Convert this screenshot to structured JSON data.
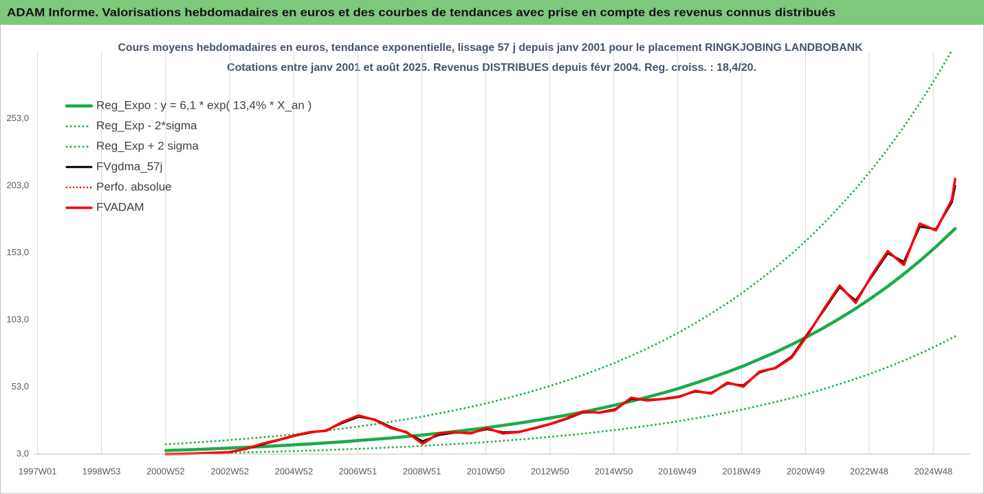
{
  "header": {
    "title": "ADAM Informe. Valorisations hebdomadaires en euros et des courbes de tendances avec prise en compte des revenus connus distribués"
  },
  "chart_data": {
    "type": "line",
    "title": "Cours moyens hebdomadaires en euros, tendance exponentielle, lissage 57 j depuis janv 2001 pour le placement RINGKJOBING LANDBOBANK",
    "subtitle": "Cotations entre janv 2001 et août 2025.  Revenus DISTRIBUES depuis févr 2004.  Reg. croiss. : 18,4/20.",
    "x": [
      2001,
      2001.5,
      2002,
      2002.5,
      2003,
      2003.5,
      2004,
      2004.5,
      2005,
      2005.5,
      2006,
      2006.5,
      2007,
      2007.5,
      2008,
      2008.5,
      2009,
      2009.5,
      2010,
      2010.5,
      2011,
      2011.5,
      2012,
      2012.5,
      2013,
      2013.5,
      2014,
      2014.5,
      2015,
      2015.5,
      2016,
      2016.5,
      2017,
      2017.5,
      2018,
      2018.5,
      2019,
      2019.5,
      2020,
      2020.5,
      2021,
      2021.5,
      2022,
      2022.5,
      2023,
      2023.5,
      2024,
      2024.5,
      2025,
      2025.5,
      2025.6
    ],
    "series": [
      {
        "name": "Reg_Expo : y = 6,1 * exp( 13,4% *  X_an )",
        "color": "#1aab4b",
        "style": "solid",
        "width": 4.5,
        "values": [
          5.7,
          6.1,
          6.5,
          7.0,
          7.5,
          8.1,
          8.6,
          9.2,
          9.9,
          10.6,
          11.4,
          12.2,
          13.1,
          14.0,
          15.0,
          16.1,
          17.2,
          18.5,
          19.8,
          21.2,
          22.7,
          24.4,
          26.1,
          28.0,
          30.0,
          32.1,
          34.4,
          36.9,
          39.5,
          42.4,
          45.4,
          48.6,
          52.1,
          55.9,
          59.9,
          64.2,
          68.7,
          73.7,
          78.9,
          84.6,
          90.6,
          97.1,
          104.1,
          111.5,
          119.5,
          128.0,
          137.2,
          147.0,
          157.5,
          168.8,
          171.1
        ]
      },
      {
        "name": "Reg_Exp - 2*sigma",
        "color": "#25b24b",
        "style": "dotted",
        "width": 3,
        "values": [
          3.0,
          3.2,
          3.5,
          3.7,
          4.0,
          4.3,
          4.6,
          4.9,
          5.2,
          5.6,
          6.0,
          6.5,
          6.9,
          7.4,
          8.0,
          8.5,
          9.1,
          9.8,
          10.5,
          11.2,
          12.0,
          12.9,
          13.8,
          14.8,
          15.9,
          17.0,
          18.2,
          19.6,
          20.9,
          22.5,
          24.1,
          25.8,
          27.6,
          29.6,
          31.7,
          34.0,
          36.4,
          39.1,
          41.8,
          44.8,
          48.0,
          51.5,
          55.2,
          59.1,
          63.3,
          67.8,
          72.7,
          77.9,
          83.5,
          89.5,
          90.7
        ]
      },
      {
        "name": "Reg_Exp + 2 sigma",
        "color": "#25b24b",
        "style": "dotted",
        "width": 3,
        "values": [
          10.3,
          11.0,
          11.8,
          12.6,
          13.5,
          14.5,
          15.5,
          16.6,
          17.8,
          19.1,
          20.5,
          22.0,
          23.6,
          25.2,
          27.0,
          29.0,
          31.0,
          33.3,
          35.6,
          38.2,
          40.9,
          43.9,
          47.0,
          50.4,
          54.0,
          57.8,
          61.9,
          66.4,
          71.1,
          76.3,
          81.7,
          87.5,
          93.8,
          100.6,
          107.8,
          115.6,
          123.7,
          132.7,
          142.0,
          152.3,
          163.1,
          174.8,
          187.4,
          200.7,
          215.1,
          230.4,
          247.0,
          264.6,
          283.5,
          303.8,
          308.0
        ]
      },
      {
        "name": "FVgdma_57j",
        "color": "#000000",
        "style": "solid",
        "width": 3,
        "values": [
          3.0,
          3.2,
          3.5,
          3.9,
          4.6,
          6.8,
          10.2,
          13.3,
          16.5,
          19.0,
          20.8,
          26.2,
          30.8,
          28.9,
          23.2,
          19.0,
          12.5,
          17.2,
          19.0,
          18.8,
          21.6,
          19.2,
          19.6,
          22.2,
          25.4,
          29.3,
          34.2,
          34.0,
          36.4,
          44.2,
          43.4,
          44.2,
          46.0,
          49.6,
          48.6,
          55.6,
          54.2,
          63.8,
          67.4,
          75.6,
          92.6,
          109.8,
          127.4,
          117.4,
          135.2,
          152.8,
          146.2,
          172.6,
          170.6,
          190.8,
          203.0
        ]
      },
      {
        "name": "Perfo. absolue",
        "color": "#e00000",
        "style": "dotted",
        "width": 2.5,
        "values": [
          3.0,
          3.2,
          3.5,
          4.0,
          4.5,
          7.0,
          10.7,
          13.5,
          16.8,
          19.4,
          20.4,
          27.0,
          31.7,
          28.6,
          22.5,
          19.4,
          10.7,
          18.4,
          19.4,
          18.4,
          22.5,
          18.4,
          19.4,
          22.5,
          25.6,
          29.7,
          34.8,
          33.8,
          35.8,
          45.0,
          43.0,
          44.0,
          45.6,
          50.2,
          48.1,
          56.3,
          53.3,
          64.5,
          67.1,
          74.8,
          91.7,
          110.7,
          128.6,
          115.8,
          136.3,
          154.3,
          144.0,
          174.8,
          169.7,
          192.7,
          208.0
        ]
      },
      {
        "name": "FVADAM",
        "color": "#ff0000",
        "style": "solid",
        "width": 3.5,
        "values": [
          3.0,
          3.2,
          3.5,
          4.0,
          4.5,
          7.0,
          10.7,
          13.5,
          16.8,
          19.4,
          20.4,
          27.0,
          31.7,
          28.6,
          22.5,
          19.4,
          10.7,
          18.4,
          19.4,
          18.4,
          22.5,
          18.4,
          19.4,
          22.5,
          25.6,
          29.7,
          34.8,
          33.8,
          35.8,
          45.0,
          43.0,
          44.0,
          45.6,
          50.2,
          48.1,
          56.3,
          53.3,
          64.5,
          67.1,
          74.8,
          91.7,
          110.7,
          128.6,
          115.8,
          136.3,
          154.3,
          144.0,
          174.8,
          169.7,
          192.7,
          208.0
        ]
      }
    ],
    "xlim": [
      1996.9,
      2026.05
    ],
    "ylim": [
      3,
      303
    ],
    "xticks": [
      {
        "value": 1997.0,
        "label": "1997W01"
      },
      {
        "value": 1998.99,
        "label": "1998W53"
      },
      {
        "value": 2000.99,
        "label": "2000W52"
      },
      {
        "value": 2002.99,
        "label": "2002W52"
      },
      {
        "value": 2004.99,
        "label": "2004W52"
      },
      {
        "value": 2006.98,
        "label": "2006W51"
      },
      {
        "value": 2008.98,
        "label": "2008W51"
      },
      {
        "value": 2010.97,
        "label": "2010W50"
      },
      {
        "value": 2012.97,
        "label": "2012W50"
      },
      {
        "value": 2014.96,
        "label": "2014W50"
      },
      {
        "value": 2016.94,
        "label": "2016W49"
      },
      {
        "value": 2018.94,
        "label": "2018W49"
      },
      {
        "value": 2020.94,
        "label": "2020W49"
      },
      {
        "value": 2022.92,
        "label": "2022W48"
      },
      {
        "value": 2024.92,
        "label": "2024W48"
      }
    ],
    "yticks": [
      {
        "value": 3,
        "label": "3,0"
      },
      {
        "value": 53,
        "label": "53,0"
      },
      {
        "value": 103,
        "label": "103,0"
      },
      {
        "value": 153,
        "label": "153,0"
      },
      {
        "value": 203,
        "label": "203,0"
      },
      {
        "value": 253,
        "label": "253,0"
      }
    ],
    "grid": true,
    "legend": "upper left"
  }
}
